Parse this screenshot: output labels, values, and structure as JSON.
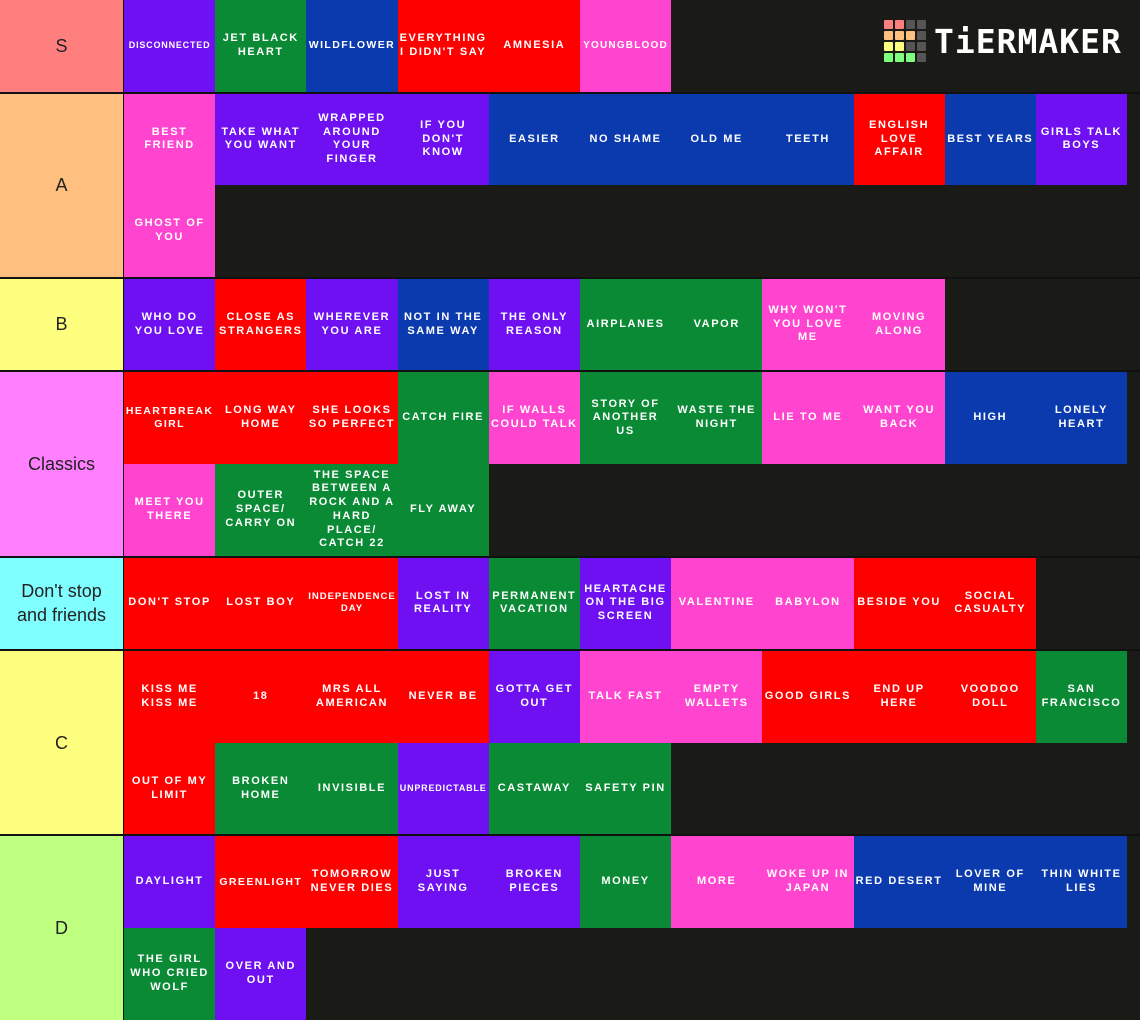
{
  "logo": "TiERMAKER",
  "tiers": [
    {
      "label": "S",
      "color": "#ff7f7f",
      "items": [
        {
          "text": "DISCONNECTED",
          "color": "#6f10f2"
        },
        {
          "text": "JET BLACK HEART",
          "color": "#0a8a34"
        },
        {
          "text": "WILDFLOWER",
          "color": "#0a3aad"
        },
        {
          "text": "EVERYTHING I DIDN'T SAY",
          "color": "#ff0000"
        },
        {
          "text": "AMNESIA",
          "color": "#ff0000"
        },
        {
          "text": "YOUNGBLOOD",
          "color": "#ff45d0"
        }
      ]
    },
    {
      "label": "A",
      "color": "#ffbf7f",
      "items": [
        {
          "text": "BEST FRIEND",
          "color": "#ff45d0"
        },
        {
          "text": "TAKE WHAT YOU WANT",
          "color": "#6f10f2"
        },
        {
          "text": "WRAPPED AROUND YOUR FINGER",
          "color": "#6f10f2"
        },
        {
          "text": "IF YOU DON'T KNOW",
          "color": "#6f10f2"
        },
        {
          "text": "EASIER",
          "color": "#0a3aad"
        },
        {
          "text": "NO SHAME",
          "color": "#0a3aad"
        },
        {
          "text": "OLD ME",
          "color": "#0a3aad"
        },
        {
          "text": "TEETH",
          "color": "#0a3aad"
        },
        {
          "text": "ENGLISH LOVE AFFAIR",
          "color": "#ff0000"
        },
        {
          "text": "BEST YEARS",
          "color": "#0a3aad"
        },
        {
          "text": "GIRLS TALK BOYS",
          "color": "#6f10f2"
        },
        {
          "text": "GHOST OF YOU",
          "color": "#ff45d0"
        }
      ]
    },
    {
      "label": "B",
      "color": "#ffff7f",
      "items": [
        {
          "text": "WHO DO YOU LOVE",
          "color": "#6f10f2"
        },
        {
          "text": "CLOSE AS STRANGERS",
          "color": "#ff0000"
        },
        {
          "text": "WHEREVER YOU ARE",
          "color": "#6f10f2"
        },
        {
          "text": "NOT IN THE SAME WAY",
          "color": "#0a3aad"
        },
        {
          "text": "THE ONLY REASON",
          "color": "#6f10f2"
        },
        {
          "text": "AIRPLANES",
          "color": "#0a8a34"
        },
        {
          "text": "VAPOR",
          "color": "#0a8a34"
        },
        {
          "text": "WHY WON'T YOU LOVE ME",
          "color": "#ff45d0"
        },
        {
          "text": "MOVING ALONG",
          "color": "#ff45d0"
        }
      ]
    },
    {
      "label": "Classics",
      "color": "#ff7fff",
      "items": [
        {
          "text": "HEARTBREAK GIRL",
          "color": "#ff0000"
        },
        {
          "text": "LONG WAY HOME",
          "color": "#ff0000"
        },
        {
          "text": "SHE LOOKS SO PERFECT",
          "color": "#ff0000"
        },
        {
          "text": "CATCH FIRE",
          "color": "#0a8a34"
        },
        {
          "text": "IF WALLS COULD TALK",
          "color": "#ff45d0"
        },
        {
          "text": "STORY OF ANOTHER US",
          "color": "#0a8a34"
        },
        {
          "text": "WASTE THE NIGHT",
          "color": "#0a8a34"
        },
        {
          "text": "LIE TO ME",
          "color": "#ff45d0"
        },
        {
          "text": "WANT YOU BACK",
          "color": "#ff45d0"
        },
        {
          "text": "HIGH",
          "color": "#0a3aad"
        },
        {
          "text": "LONELY HEART",
          "color": "#0a3aad"
        },
        {
          "text": "MEET YOU THERE",
          "color": "#ff45d0"
        },
        {
          "text": "OUTER SPACE/ CARRY ON",
          "color": "#0a8a34"
        },
        {
          "text": "THE SPACE BETWEEN A ROCK AND A HARD PLACE/ CATCH 22",
          "color": "#0a8a34"
        },
        {
          "text": "FLY AWAY",
          "color": "#0a8a34"
        }
      ]
    },
    {
      "label": "Don't stop and friends",
      "color": "#7fffff",
      "items": [
        {
          "text": "DON'T STOP",
          "color": "#ff0000"
        },
        {
          "text": "LOST BOY",
          "color": "#ff0000"
        },
        {
          "text": "INDEPENDENCE DAY",
          "color": "#ff0000"
        },
        {
          "text": "LOST IN REALITY",
          "color": "#6f10f2"
        },
        {
          "text": "PERMANENT VACATION",
          "color": "#0a8a34"
        },
        {
          "text": "HEARTACHE ON THE BIG SCREEN",
          "color": "#6f10f2"
        },
        {
          "text": "VALENTINE",
          "color": "#ff45d0"
        },
        {
          "text": "BABYLON",
          "color": "#ff45d0"
        },
        {
          "text": "BESIDE YOU",
          "color": "#ff0000"
        },
        {
          "text": "SOCIAL CASUALTY",
          "color": "#ff0000"
        }
      ]
    },
    {
      "label": "C",
      "color": "#ffff7f",
      "items": [
        {
          "text": "KISS ME KISS ME",
          "color": "#ff0000"
        },
        {
          "text": "18",
          "color": "#ff0000"
        },
        {
          "text": "MRS ALL AMERICAN",
          "color": "#ff0000"
        },
        {
          "text": "NEVER BE",
          "color": "#ff0000"
        },
        {
          "text": "GOTTA GET OUT",
          "color": "#6f10f2"
        },
        {
          "text": "TALK FAST",
          "color": "#ff45d0"
        },
        {
          "text": "EMPTY WALLETS",
          "color": "#ff45d0"
        },
        {
          "text": "GOOD GIRLS",
          "color": "#ff0000"
        },
        {
          "text": "END UP HERE",
          "color": "#ff0000"
        },
        {
          "text": "VOODOO DOLL",
          "color": "#ff0000"
        },
        {
          "text": "SAN FRANCISCO",
          "color": "#0a8a34"
        },
        {
          "text": "OUT OF MY LIMIT",
          "color": "#ff0000"
        },
        {
          "text": "BROKEN HOME",
          "color": "#0a8a34"
        },
        {
          "text": "INVISIBLE",
          "color": "#0a8a34"
        },
        {
          "text": "UNPREDICTABLE",
          "color": "#6f10f2"
        },
        {
          "text": "CASTAWAY",
          "color": "#0a8a34"
        },
        {
          "text": "SAFETY PIN",
          "color": "#0a8a34"
        }
      ]
    },
    {
      "label": "D",
      "color": "#bfff7f",
      "items": [
        {
          "text": "DAYLIGHT",
          "color": "#6f10f2"
        },
        {
          "text": "GREENLIGHT",
          "color": "#ff0000"
        },
        {
          "text": "TOMORROW NEVER DIES",
          "color": "#ff0000"
        },
        {
          "text": "JUST SAYING",
          "color": "#6f10f2"
        },
        {
          "text": "BROKEN PIECES",
          "color": "#6f10f2"
        },
        {
          "text": "MONEY",
          "color": "#0a8a34"
        },
        {
          "text": "MORE",
          "color": "#ff45d0"
        },
        {
          "text": "WOKE UP IN JAPAN",
          "color": "#ff45d0"
        },
        {
          "text": "RED DESERT",
          "color": "#0a3aad"
        },
        {
          "text": "LOVER OF MINE",
          "color": "#0a3aad"
        },
        {
          "text": "THIN WHITE LIES",
          "color": "#0a3aad"
        },
        {
          "text": "THE GIRL WHO CRIED WOLF",
          "color": "#0a8a34"
        },
        {
          "text": "OVER AND OUT",
          "color": "#6f10f2"
        }
      ]
    }
  ]
}
